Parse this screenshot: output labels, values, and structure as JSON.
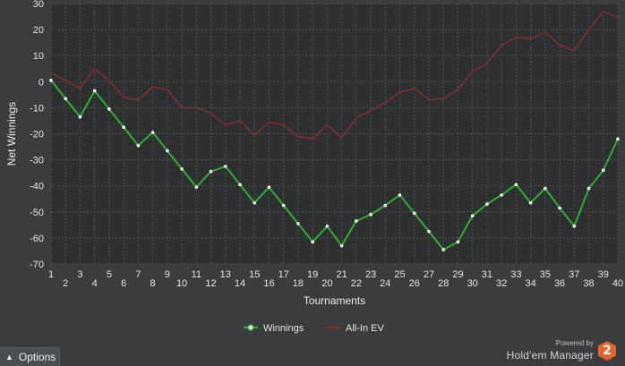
{
  "chart_data": {
    "type": "line",
    "xlabel": "Tournaments",
    "ylabel": "Net Winnings",
    "ylim": [
      -70,
      30
    ],
    "yticks": [
      30,
      20,
      10,
      0,
      -10,
      -20,
      -30,
      -40,
      -50,
      -60,
      -70
    ],
    "xlim": [
      1,
      40
    ],
    "x": [
      1,
      2,
      3,
      4,
      5,
      6,
      7,
      8,
      9,
      10,
      11,
      12,
      13,
      14,
      15,
      16,
      17,
      18,
      19,
      20,
      21,
      22,
      23,
      24,
      25,
      26,
      27,
      28,
      29,
      30,
      31,
      32,
      33,
      34,
      35,
      36,
      37,
      38,
      39,
      40
    ],
    "grid": true,
    "legend_position": "bottom-center",
    "series": [
      {
        "name": "Winnings",
        "color": "#2fae2f",
        "marker": "white-dot",
        "values": [
          0.5,
          -6.5,
          -13.5,
          -3.5,
          -10.5,
          -17.5,
          -24.5,
          -19.5,
          -26.5,
          -33.5,
          -40.5,
          -34.5,
          -32.5,
          -39.5,
          -46.5,
          -40.5,
          -47.5,
          -54.5,
          -61.5,
          -55.5,
          -63,
          -53.5,
          -51,
          -47.5,
          -43.5,
          -50.5,
          -57.5,
          -64.5,
          -61.5,
          -51.5,
          -47,
          -43.5,
          -39.5,
          -46.5,
          -41,
          -48.5,
          -55.5,
          -41,
          -34,
          -22
        ]
      },
      {
        "name": "All-In EV",
        "color": "#8a2e2a",
        "values": [
          3.5,
          0.5,
          -2.5,
          5,
          0.5,
          -6,
          -7,
          -2,
          -3,
          -10,
          -10,
          -12,
          -16.5,
          -15,
          -20.5,
          -15.5,
          -16.5,
          -21,
          -22,
          -16.5,
          -21.5,
          -14,
          -11,
          -8,
          -4,
          -2.5,
          -7,
          -6.5,
          -3,
          4,
          7,
          14,
          17,
          16.5,
          19,
          14,
          12,
          20,
          27,
          24.5
        ]
      }
    ]
  },
  "ui": {
    "options_label": "Options",
    "powered_by": "Powered by",
    "brand_name": "Hold'em Manager",
    "brand_logo_text": "2",
    "colors": {
      "background": "#3a3c3e",
      "plot_background": "#2d2f31",
      "grid": "#505356",
      "accent_logo": "#e0642b"
    }
  }
}
